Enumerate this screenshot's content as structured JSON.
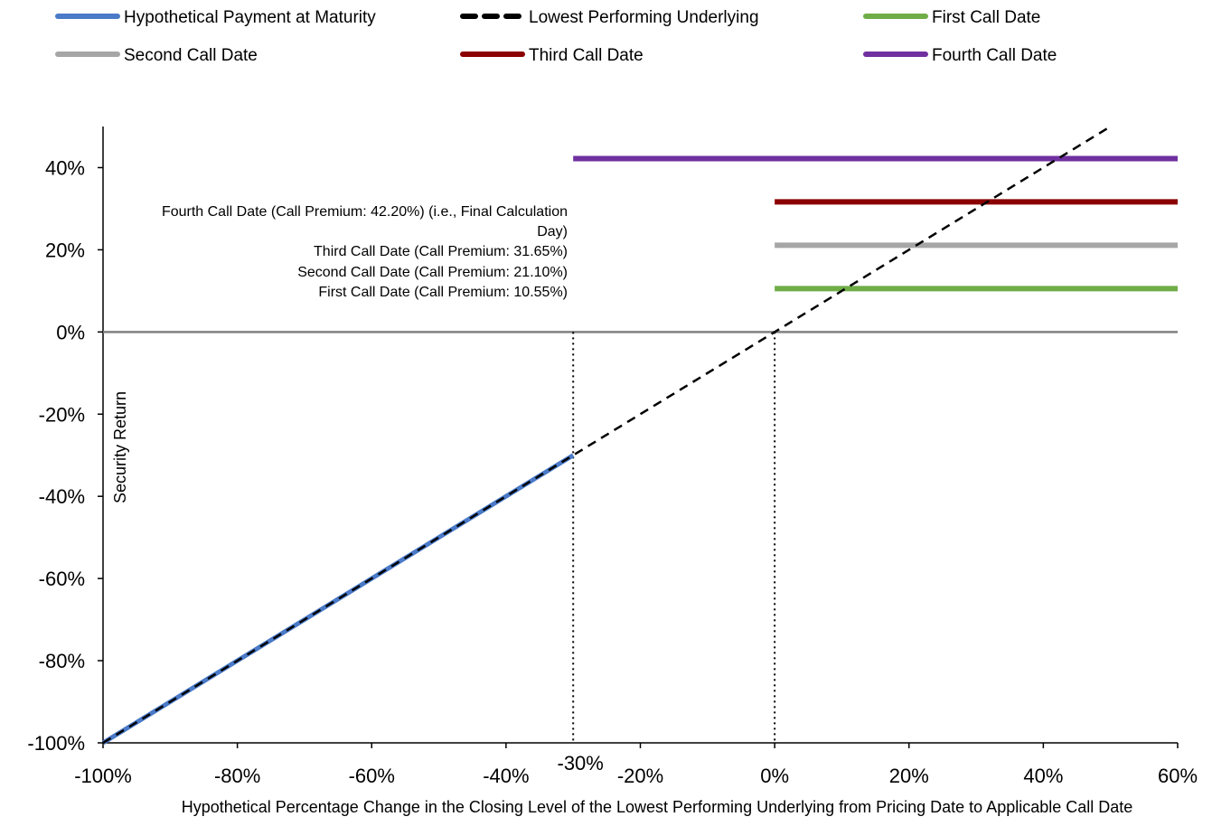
{
  "chart_data": {
    "type": "line",
    "xlabel": "Hypothetical Percentage Change in the Closing Level of the Lowest Performing Underlying from Pricing Date to Applicable Call Date",
    "ylabel": "Security Return",
    "xlim": [
      -100,
      60
    ],
    "ylim": [
      -100,
      50
    ],
    "x_ticks": [
      {
        "value": -100,
        "label": "-100%"
      },
      {
        "value": -80,
        "label": "-80%"
      },
      {
        "value": -60,
        "label": "-60%"
      },
      {
        "value": -40,
        "label": "-40%"
      },
      {
        "value": -20,
        "label": "-20%"
      },
      {
        "value": 0,
        "label": "0%"
      },
      {
        "value": 20,
        "label": "20%"
      },
      {
        "value": 40,
        "label": "40%"
      },
      {
        "value": 60,
        "label": "60%"
      }
    ],
    "x_extra_tick": {
      "value": -30,
      "label": "-30%"
    },
    "y_ticks": [
      {
        "value": 40,
        "label": "40%"
      },
      {
        "value": 20,
        "label": "20%"
      },
      {
        "value": 0,
        "label": "0%"
      },
      {
        "value": -20,
        "label": "-20%"
      },
      {
        "value": -40,
        "label": "-40%"
      },
      {
        "value": -60,
        "label": "-60%"
      },
      {
        "value": -80,
        "label": "-80%"
      },
      {
        "value": -100,
        "label": "-100%"
      }
    ],
    "series": [
      {
        "name": "Hypothetical Payment at Maturity",
        "color": "#4a7ac8",
        "style": "solid",
        "x": [
          -100,
          -30
        ],
        "y": [
          -100,
          -30
        ]
      },
      {
        "name": "Lowest Performing Underlying",
        "color": "#000000",
        "style": "dashed",
        "x": [
          -100,
          50
        ],
        "y": [
          -100,
          50
        ]
      },
      {
        "name": "First Call Date",
        "color": "#70ad47",
        "style": "solid",
        "x": [
          0,
          60
        ],
        "y": [
          10.55,
          10.55
        ]
      },
      {
        "name": "Second Call Date",
        "color": "#a6a6a6",
        "style": "solid",
        "x": [
          0,
          60
        ],
        "y": [
          21.1,
          21.1
        ]
      },
      {
        "name": "Third Call Date",
        "color": "#8b0000",
        "style": "solid",
        "x": [
          0,
          60
        ],
        "y": [
          31.65,
          31.65
        ]
      },
      {
        "name": "Fourth Call Date",
        "color": "#7030a0",
        "style": "solid",
        "x": [
          -30,
          60
        ],
        "y": [
          42.2,
          42.2
        ]
      }
    ],
    "vertical_markers": [
      -30,
      0
    ],
    "annotations": [
      "Fourth Call Date (Call Premium: 42.20%) (i.e., Final Calculation",
      "Day)",
      "Third Call Date (Call Premium: 31.65%)",
      "Second Call Date (Call Premium: 21.10%)",
      "First Call Date (Call Premium: 10.55%)"
    ],
    "legend": {
      "placement": "top",
      "rows": [
        [
          "Hypothetical Payment at Maturity",
          "Lowest Performing Underlying",
          "First Call Date"
        ],
        [
          "Second Call Date",
          "Third Call Date",
          "Fourth Call Date"
        ]
      ]
    }
  }
}
